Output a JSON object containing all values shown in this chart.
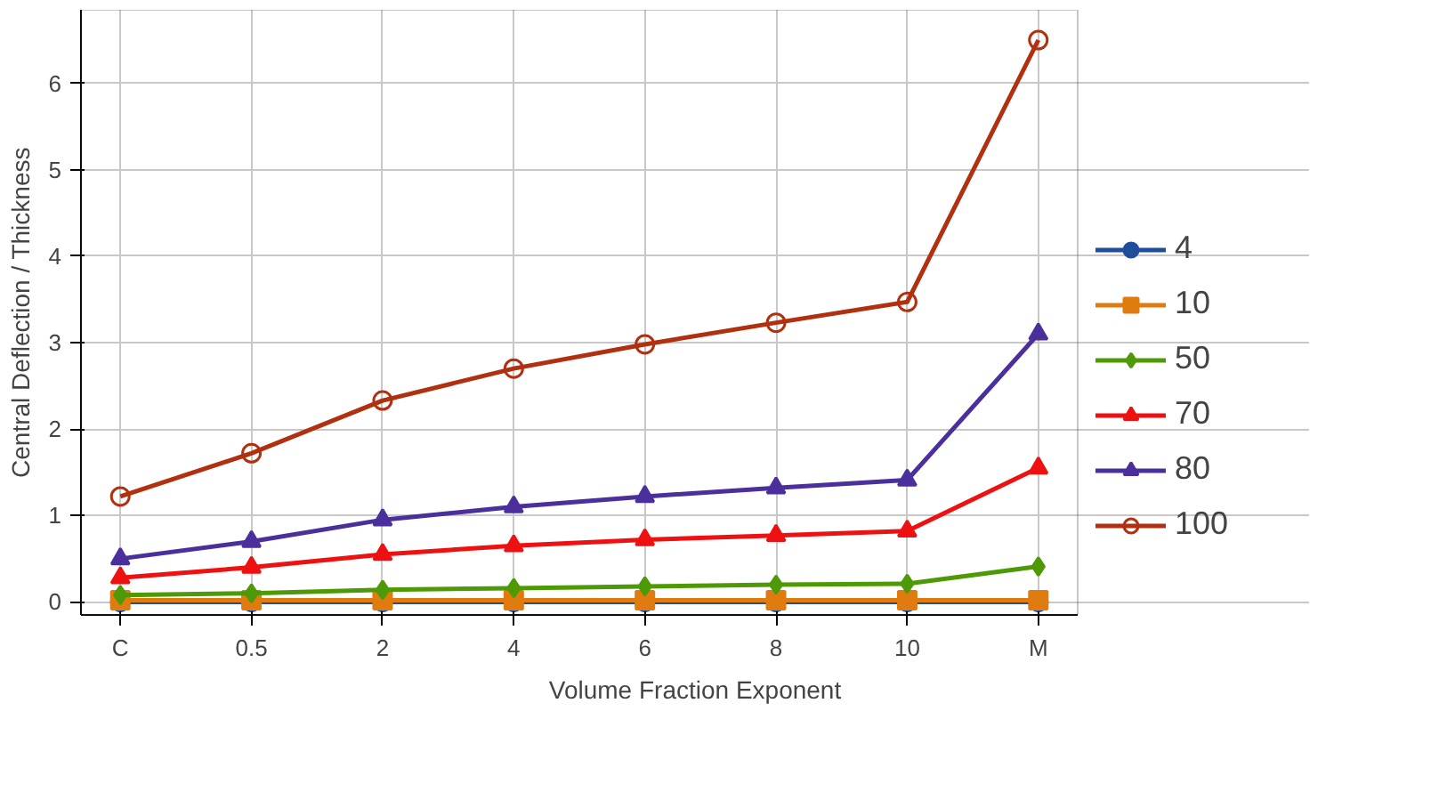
{
  "chart_data": {
    "type": "line",
    "xlabel": "Volume Fraction Exponent",
    "ylabel": "Central Deflection / Thickness",
    "categories": [
      "C",
      "0.5",
      "2",
      "4",
      "6",
      "8",
      "10",
      "M"
    ],
    "ylim": [
      -0.15,
      6.85
    ],
    "yticks": [
      0,
      1,
      2,
      3,
      4,
      5,
      6
    ],
    "grid": true,
    "legend": "right",
    "line_style": "solid",
    "series": [
      {
        "name": "4",
        "color": "#1f4e9c",
        "marker": "circle",
        "values": [
          0.0,
          0.0,
          0.0,
          0.0,
          0.0,
          0.0,
          0.0,
          0.0
        ]
      },
      {
        "name": "10",
        "color": "#e07b10",
        "marker": "square",
        "values": [
          0.02,
          0.02,
          0.02,
          0.02,
          0.02,
          0.02,
          0.02,
          0.02
        ]
      },
      {
        "name": "50",
        "color": "#4e9a06",
        "marker": "diamond",
        "values": [
          0.08,
          0.1,
          0.14,
          0.16,
          0.18,
          0.2,
          0.21,
          0.41
        ]
      },
      {
        "name": "70",
        "color": "#ee1111",
        "marker": "triangle",
        "values": [
          0.28,
          0.4,
          0.55,
          0.65,
          0.72,
          0.77,
          0.82,
          1.55
        ]
      },
      {
        "name": "80",
        "color": "#4b2f9c",
        "marker": "triangle",
        "values": [
          0.5,
          0.7,
          0.95,
          1.1,
          1.22,
          1.32,
          1.41,
          3.1
        ]
      },
      {
        "name": "100",
        "color": "#b03010",
        "marker": "circle_open",
        "values": [
          1.22,
          1.72,
          2.33,
          2.7,
          2.98,
          3.23,
          3.47,
          6.5
        ]
      }
    ]
  }
}
